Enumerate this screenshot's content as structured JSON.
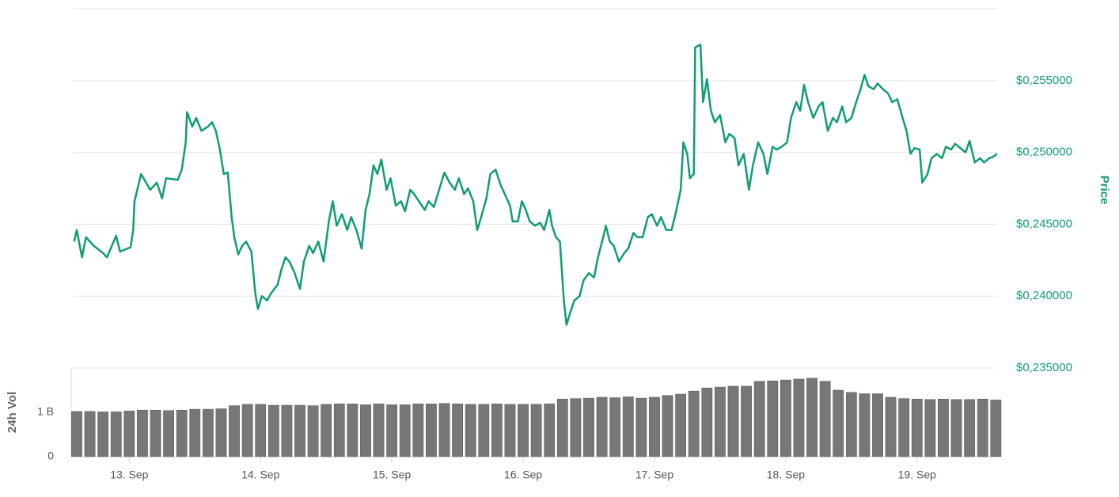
{
  "chart_data": [
    {
      "type": "line",
      "y_label": "Price",
      "color": "#0f9d73",
      "xlim": [
        12.57,
        19.61
      ],
      "ylim": [
        0.235,
        0.26
      ],
      "yticks": [
        {
          "value": 0.235,
          "label": "$0,235000"
        },
        {
          "value": 0.24,
          "label": "$0,240000"
        },
        {
          "value": 0.245,
          "label": "$0,245000"
        },
        {
          "value": 0.25,
          "label": "$0,250000"
        },
        {
          "value": 0.255,
          "label": "$0,255000"
        }
      ],
      "grid": true,
      "x": [
        12.58,
        12.6,
        12.64,
        12.67,
        12.73,
        12.8,
        12.83,
        12.9,
        12.93,
        13.01,
        13.03,
        13.04,
        13.09,
        13.16,
        13.21,
        13.25,
        13.28,
        13.37,
        13.4,
        13.43,
        13.44,
        13.48,
        13.51,
        13.55,
        13.6,
        13.63,
        13.66,
        13.69,
        13.72,
        13.75,
        13.78,
        13.8,
        13.83,
        13.86,
        13.89,
        13.93,
        13.96,
        13.98,
        14.01,
        14.05,
        14.08,
        14.13,
        14.16,
        14.19,
        14.22,
        14.26,
        14.3,
        14.33,
        14.37,
        14.4,
        14.44,
        14.48,
        14.52,
        14.55,
        14.58,
        14.62,
        14.66,
        14.69,
        14.73,
        14.77,
        14.8,
        14.83,
        14.86,
        14.89,
        14.92,
        14.96,
        14.99,
        15.03,
        15.07,
        15.1,
        15.14,
        15.17,
        15.25,
        15.28,
        15.32,
        15.36,
        15.4,
        15.44,
        15.48,
        15.51,
        15.55,
        15.58,
        15.62,
        15.65,
        15.68,
        15.72,
        15.75,
        15.79,
        15.83,
        15.86,
        15.9,
        15.92,
        15.96,
        15.99,
        16.02,
        16.05,
        16.09,
        16.13,
        16.16,
        16.2,
        16.22,
        16.25,
        16.28,
        16.31,
        16.33,
        16.36,
        16.39,
        16.43,
        16.46,
        16.5,
        16.54,
        16.57,
        16.61,
        16.63,
        16.66,
        16.69,
        16.73,
        16.77,
        16.8,
        16.84,
        16.87,
        16.91,
        16.95,
        16.98,
        17.02,
        17.05,
        17.09,
        17.13,
        17.16,
        17.2,
        17.22,
        17.25,
        17.27,
        17.3,
        17.31,
        17.35,
        17.37,
        17.4,
        17.43,
        17.46,
        17.5,
        17.54,
        17.57,
        17.61,
        17.64,
        17.68,
        17.72,
        17.75,
        17.79,
        17.83,
        17.86,
        17.9,
        17.93,
        17.97,
        18.01,
        18.04,
        18.08,
        18.11,
        18.14,
        18.17,
        18.21,
        18.25,
        18.28,
        18.32,
        18.36,
        18.39,
        18.43,
        18.46,
        18.5,
        18.54,
        18.57,
        18.6,
        18.63,
        18.67,
        18.7,
        18.74,
        18.78,
        18.81,
        18.85,
        18.89,
        18.92,
        18.95,
        18.98,
        19.02,
        19.04,
        19.08,
        19.11,
        19.15,
        19.19,
        19.22,
        19.26,
        19.29,
        19.33,
        19.37,
        19.4,
        19.44,
        19.48,
        19.51,
        19.55,
        19.58,
        19.61
      ],
      "values": [
        0.2438,
        0.2446,
        0.2427,
        0.2441,
        0.2435,
        0.243,
        0.2427,
        0.2442,
        0.2431,
        0.2434,
        0.2446,
        0.2466,
        0.2485,
        0.2474,
        0.2479,
        0.2468,
        0.2482,
        0.2481,
        0.2488,
        0.2507,
        0.2528,
        0.2518,
        0.2524,
        0.2515,
        0.2518,
        0.2521,
        0.2515,
        0.2502,
        0.2485,
        0.2486,
        0.2455,
        0.2441,
        0.2429,
        0.2435,
        0.2438,
        0.2431,
        0.2402,
        0.2391,
        0.24,
        0.2397,
        0.2402,
        0.2408,
        0.2419,
        0.2427,
        0.2424,
        0.2416,
        0.2405,
        0.2424,
        0.2435,
        0.243,
        0.2438,
        0.2424,
        0.2452,
        0.2466,
        0.2449,
        0.2457,
        0.2446,
        0.2455,
        0.2446,
        0.2433,
        0.246,
        0.2471,
        0.2491,
        0.2485,
        0.2495,
        0.2474,
        0.2482,
        0.2463,
        0.2466,
        0.2459,
        0.2474,
        0.2471,
        0.246,
        0.2466,
        0.2462,
        0.2474,
        0.2486,
        0.2479,
        0.2474,
        0.2482,
        0.2471,
        0.2475,
        0.2466,
        0.2446,
        0.2455,
        0.2468,
        0.2485,
        0.2488,
        0.2477,
        0.2471,
        0.2463,
        0.2452,
        0.2452,
        0.2466,
        0.246,
        0.2452,
        0.2449,
        0.2451,
        0.2446,
        0.246,
        0.2449,
        0.2441,
        0.2438,
        0.2397,
        0.238,
        0.2389,
        0.2397,
        0.24,
        0.2411,
        0.2416,
        0.2413,
        0.2427,
        0.2441,
        0.2449,
        0.2438,
        0.2435,
        0.2424,
        0.243,
        0.2433,
        0.2444,
        0.2441,
        0.2441,
        0.2455,
        0.2457,
        0.2449,
        0.2455,
        0.2446,
        0.2446,
        0.2457,
        0.2474,
        0.2507,
        0.2499,
        0.2482,
        0.2485,
        0.2573,
        0.2575,
        0.2535,
        0.2551,
        0.2529,
        0.2521,
        0.2526,
        0.2507,
        0.2513,
        0.251,
        0.2491,
        0.2499,
        0.2474,
        0.2491,
        0.2507,
        0.2499,
        0.2485,
        0.2504,
        0.2502,
        0.2504,
        0.2507,
        0.2524,
        0.2535,
        0.2529,
        0.2547,
        0.2535,
        0.2524,
        0.2532,
        0.2535,
        0.2515,
        0.2524,
        0.2521,
        0.2532,
        0.2521,
        0.2524,
        0.2536,
        0.2544,
        0.2554,
        0.2546,
        0.2544,
        0.2548,
        0.2544,
        0.2541,
        0.2535,
        0.2537,
        0.2524,
        0.2515,
        0.2499,
        0.2503,
        0.2502,
        0.2479,
        0.2485,
        0.2496,
        0.2499,
        0.2496,
        0.2504,
        0.2502,
        0.2506,
        0.2503,
        0.25,
        0.2508,
        0.2493,
        0.2496,
        0.2493,
        0.2496,
        0.2497,
        0.2499
      ]
    },
    {
      "type": "bar",
      "y_label": "24h Vol",
      "color": "#777777",
      "xlim": [
        12.57,
        19.61
      ],
      "xticks": [
        {
          "value": 13,
          "label": "13. Sep"
        },
        {
          "value": 14,
          "label": "14. Sep"
        },
        {
          "value": 15,
          "label": "15. Sep"
        },
        {
          "value": 16,
          "label": "16. Sep"
        },
        {
          "value": 17,
          "label": "17. Sep"
        },
        {
          "value": 18,
          "label": "18. Sep"
        },
        {
          "value": 19,
          "label": "19. Sep"
        }
      ],
      "ylim": [
        0,
        2
      ],
      "yticks": [
        0,
        {
          "value": 1,
          "label": "1 B"
        }
      ],
      "x": [
        12.6,
        12.7,
        12.8,
        12.9,
        13.0,
        13.1,
        13.2,
        13.3,
        13.4,
        13.5,
        13.6,
        13.7,
        13.8,
        13.9,
        14.0,
        14.1,
        14.2,
        14.3,
        14.4,
        14.5,
        14.6,
        14.7,
        14.8,
        14.9,
        15.0,
        15.1,
        15.2,
        15.3,
        15.4,
        15.5,
        15.6,
        15.7,
        15.8,
        15.9,
        16.0,
        16.1,
        16.2,
        16.3,
        16.4,
        16.5,
        16.6,
        16.7,
        16.8,
        16.9,
        17.0,
        17.1,
        17.2,
        17.3,
        17.4,
        17.5,
        17.6,
        17.7,
        17.8,
        17.9,
        18.0,
        18.1,
        18.2,
        18.3,
        18.4,
        18.5,
        18.6,
        18.7,
        18.8,
        18.9,
        19.0,
        19.1,
        19.2,
        19.3,
        19.4,
        19.5,
        19.6
      ],
      "values": [
        1.02,
        1.02,
        1.01,
        1.01,
        1.03,
        1.05,
        1.05,
        1.04,
        1.05,
        1.07,
        1.07,
        1.08,
        1.15,
        1.18,
        1.18,
        1.16,
        1.16,
        1.16,
        1.15,
        1.18,
        1.19,
        1.19,
        1.17,
        1.19,
        1.17,
        1.17,
        1.19,
        1.19,
        1.2,
        1.19,
        1.18,
        1.18,
        1.19,
        1.18,
        1.18,
        1.18,
        1.19,
        1.3,
        1.31,
        1.32,
        1.34,
        1.33,
        1.35,
        1.32,
        1.34,
        1.38,
        1.41,
        1.48,
        1.55,
        1.57,
        1.59,
        1.59,
        1.7,
        1.71,
        1.73,
        1.75,
        1.77,
        1.7,
        1.5,
        1.45,
        1.42,
        1.42,
        1.34,
        1.31,
        1.3,
        1.29,
        1.3,
        1.29,
        1.29,
        1.3,
        1.28
      ]
    }
  ]
}
